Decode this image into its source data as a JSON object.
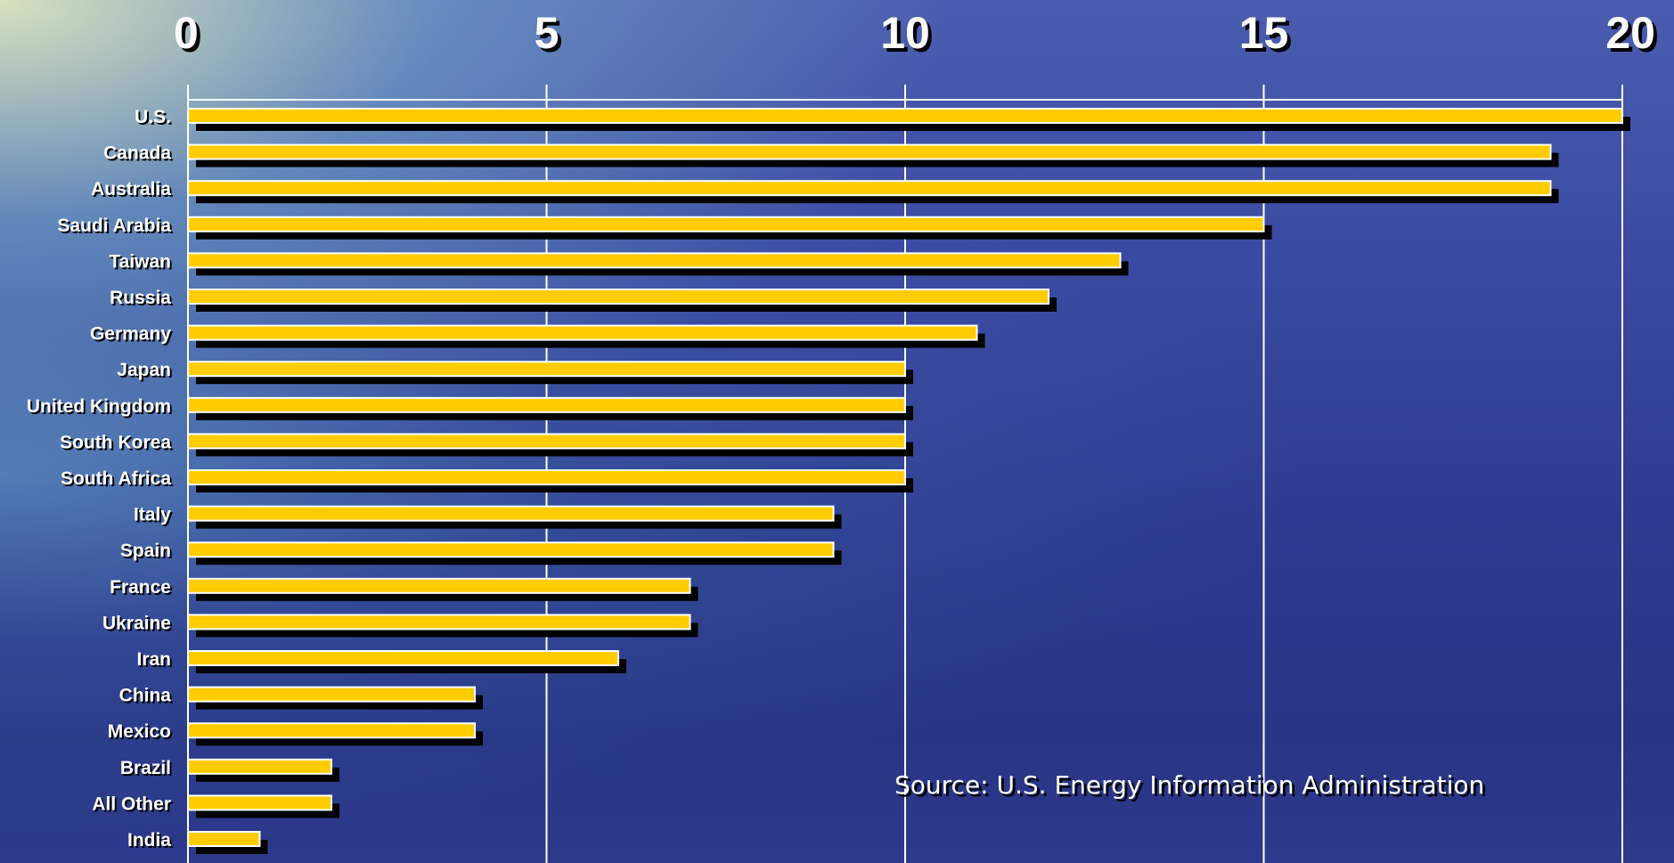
{
  "chart_data": {
    "type": "bar",
    "orientation": "horizontal",
    "categories": [
      "U.S.",
      "Canada",
      "Australia",
      "Saudi Arabia",
      "Taiwan",
      "Russia",
      "Germany",
      "Japan",
      "United Kingdom",
      "South Korea",
      "South Africa",
      "Italy",
      "Spain",
      "France",
      "Ukraine",
      "Iran",
      "China",
      "Mexico",
      "Brazil",
      "All Other",
      "India"
    ],
    "values": [
      20,
      19,
      19,
      15,
      13,
      12,
      11,
      10,
      10,
      10,
      10,
      9,
      9,
      7,
      7,
      6,
      4,
      4,
      2,
      2,
      1
    ],
    "xlim": [
      0,
      20
    ],
    "xticks": [
      "0",
      "5",
      "10",
      "15",
      "20"
    ],
    "title": "",
    "xlabel": "",
    "ylabel": "",
    "grid": true,
    "legend": "none",
    "bar_color": "#FFCC00",
    "bar_edge_color": "#FFFFFF",
    "shadow_color": "#000000",
    "annotation": "Source: U.S. Energy Information Administration"
  }
}
